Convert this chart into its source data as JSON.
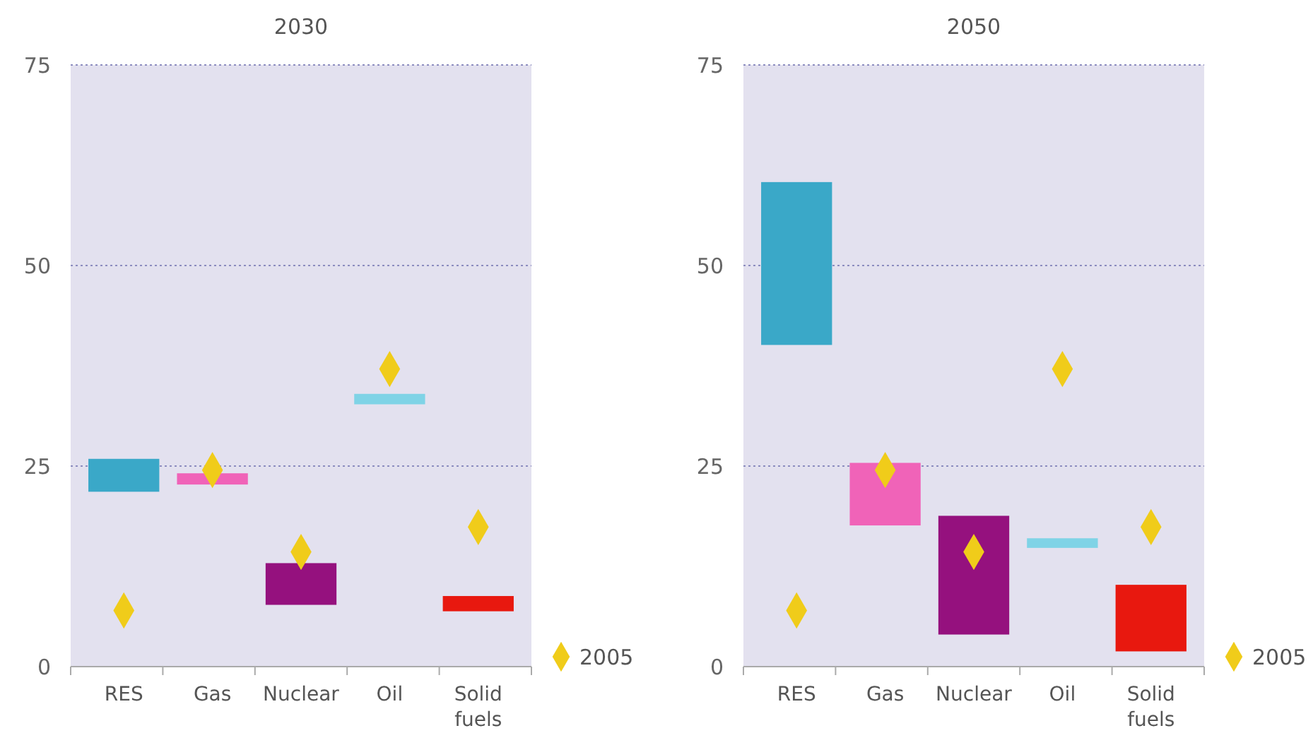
{
  "chart_data": [
    {
      "type": "bar",
      "title": "2030",
      "categories": [
        "RES",
        "Gas",
        "Nuclear",
        "Oil",
        "Solid fuels"
      ],
      "base": [
        21.8,
        22.7,
        7.7,
        32.7,
        6.9
      ],
      "values": [
        4.1,
        1.4,
        5.2,
        1.3,
        1.9
      ],
      "colors": [
        "#3aa8c8",
        "#f063b8",
        "#95117e",
        "#7fd3e6",
        "#e8180f"
      ],
      "ylim": [
        0,
        75
      ],
      "yticks": [
        0,
        25,
        50,
        75
      ],
      "grid": "y",
      "legend": "bottom right",
      "marker": "diamond",
      "series": [
        {
          "type": "scatter",
          "name": "2005",
          "color": "#f0cc1a",
          "values": [
            7.0,
            24.5,
            14.3,
            37.1,
            17.4
          ]
        }
      ]
    },
    {
      "type": "bar",
      "title": "2050",
      "categories": [
        "RES",
        "Gas",
        "Nuclear",
        "Oil",
        "Solid fuels"
      ],
      "base": [
        40.1,
        17.6,
        4.0,
        14.8,
        1.9
      ],
      "values": [
        20.3,
        7.8,
        14.8,
        1.2,
        8.3
      ],
      "colors": [
        "#3aa8c8",
        "#f063b8",
        "#95117e",
        "#7fd3e6",
        "#e8180f"
      ],
      "ylim": [
        0,
        75
      ],
      "yticks": [
        0,
        25,
        50,
        75
      ],
      "grid": "y",
      "legend": "bottom right",
      "marker": "diamond",
      "series": [
        {
          "type": "scatter",
          "name": "2005",
          "color": "#f0cc1a",
          "values": [
            7.0,
            24.5,
            14.3,
            37.1,
            17.4
          ]
        }
      ]
    }
  ]
}
